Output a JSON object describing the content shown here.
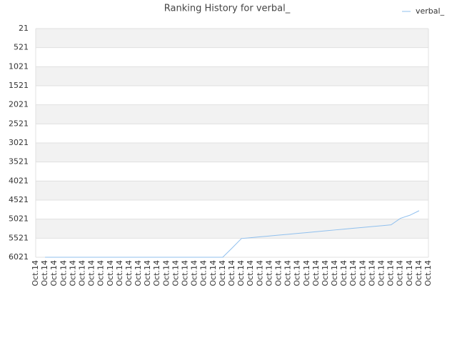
{
  "chart_data": {
    "type": "line",
    "title": "Ranking History for verbal_",
    "categories": [
      "Oct.14",
      "Oct.14",
      "Oct.14",
      "Oct.14",
      "Oct.14",
      "Oct.14",
      "Oct.14",
      "Oct.14",
      "Oct.14",
      "Oct.14",
      "Oct.14",
      "Oct.14",
      "Oct.14",
      "Oct.14",
      "Oct.14",
      "Oct.14",
      "Oct.14",
      "Oct.14",
      "Oct.14",
      "Oct.14",
      "Oct.14",
      "Oct.14",
      "Oct.14",
      "Oct.14",
      "Oct.14",
      "Oct.14",
      "Oct.14",
      "Oct.14",
      "Oct.14",
      "Oct.14",
      "Oct.14",
      "Oct.14",
      "Oct.14",
      "Oct.14",
      "Oct.14",
      "Oct.14",
      "Oct.14",
      "Oct.14",
      "Oct.14",
      "Oct.14",
      "Oct.14",
      "Oct.14",
      "Oct.14"
    ],
    "series": [
      {
        "name": "verbal_",
        "color": "#90c0ee",
        "values": [
          null,
          6021,
          6021,
          6021,
          6021,
          6021,
          6021,
          6021,
          6021,
          6021,
          6021,
          6021,
          6021,
          6021,
          6021,
          6021,
          6021,
          6021,
          6021,
          6021,
          6021,
          5780,
          5530,
          5508,
          5485,
          5463,
          5440,
          5418,
          5395,
          5373,
          5350,
          5328,
          5305,
          5283,
          5260,
          5238,
          5215,
          5193,
          5170,
          5000,
          4920,
          4800,
          null
        ]
      }
    ],
    "ylim": [
      21,
      6021
    ],
    "y_reversed": true,
    "yticks": [
      21,
      521,
      1021,
      1521,
      2021,
      2521,
      3021,
      3521,
      4021,
      4521,
      5021,
      5521,
      6021
    ],
    "grid": true,
    "legend": "top-right"
  }
}
